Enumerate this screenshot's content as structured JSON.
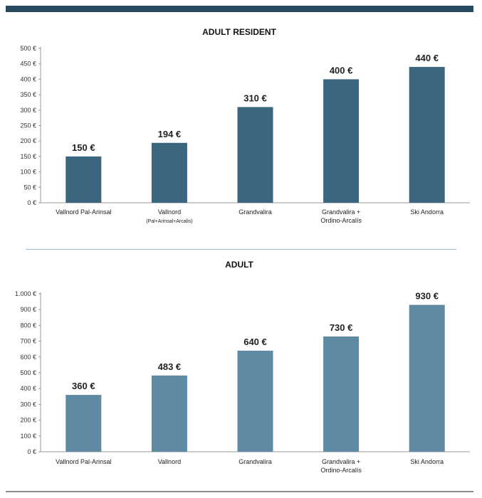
{
  "colors": {
    "header_bar": "#274a5f",
    "divider": "#9bb9cc"
  },
  "chart_data": [
    {
      "type": "bar",
      "title": "ADULT RESIDENT",
      "categories": [
        [
          "Vallnord Pal-Arinsal"
        ],
        [
          "Vallnord",
          "(Pal+Arinsal+Arcalis)"
        ],
        [
          "Grandvalira"
        ],
        [
          "Grandvalira +",
          "Ordino-Arcalís"
        ],
        [
          "Ski Andorra"
        ]
      ],
      "values": [
        150,
        194,
        310,
        400,
        440
      ],
      "data_labels": [
        "150 €",
        "194 €",
        "310 €",
        "400 €",
        "440 €"
      ],
      "ylim": [
        0,
        500
      ],
      "yticks": [
        0,
        50,
        100,
        150,
        200,
        250,
        300,
        350,
        400,
        450,
        500
      ],
      "ytick_labels": [
        "0 €",
        "50 €",
        "100 €",
        "150 €",
        "200 €",
        "250 €",
        "300 €",
        "350 €",
        "400 €",
        "450 €",
        "500 €"
      ],
      "bar_color": "#3b6680",
      "grid": false,
      "xlabel": "",
      "ylabel": ""
    },
    {
      "type": "bar",
      "title": "ADULT",
      "categories": [
        [
          "Vallnord Pal-Arinsal"
        ],
        [
          "Vallnord"
        ],
        [
          "Grandvalira"
        ],
        [
          "Grandvalira +",
          "Ordino-Arcalís"
        ],
        [
          "Ski Andorra"
        ]
      ],
      "values": [
        360,
        483,
        640,
        730,
        930
      ],
      "data_labels": [
        "360 €",
        "483 €",
        "640 €",
        "730 €",
        "930 €"
      ],
      "ylim": [
        0,
        1000
      ],
      "yticks": [
        0,
        100,
        200,
        300,
        400,
        500,
        600,
        700,
        800,
        900,
        1000
      ],
      "ytick_labels": [
        "0 €",
        "100 €",
        "200 €",
        "300 €",
        "400 €",
        "500 €",
        "600 €",
        "700 €",
        "800 €",
        "900 €",
        "1.000 €"
      ],
      "bar_color": "#5e8aa3",
      "grid": false,
      "xlabel": "",
      "ylabel": ""
    }
  ]
}
